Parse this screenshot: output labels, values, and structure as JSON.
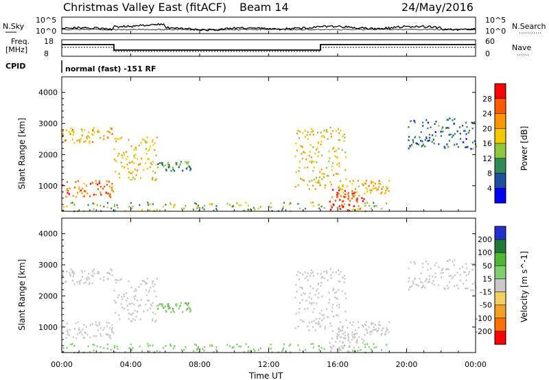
{
  "header": {
    "title": "Christmas Valley East (fitACF)",
    "beam": "Beam 14",
    "date": "24/May/2016"
  },
  "strips": {
    "nsky_label": "N.Sky",
    "nsky_ticks": [
      "10^5",
      "10^0"
    ],
    "nsearch_label": "N.Search",
    "nsearch_ticks": [
      "10^5",
      "10^0"
    ],
    "freq_label_1": "Freq.",
    "freq_label_2": "[MHz]",
    "freq_ticks": [
      "18",
      "8"
    ],
    "nave_label": "Nave",
    "nave_ticks": [
      "60",
      "0"
    ],
    "cpid_label": "CPID",
    "cpid_text": "normal (fast) -151 RF"
  },
  "axes": {
    "ylabel": "Slant Range [km]",
    "xlabel": "Time UT",
    "yticks": [
      "4000",
      "3000",
      "2000",
      "1000"
    ],
    "xticks": [
      "00:00",
      "04:00",
      "08:00",
      "12:00",
      "16:00",
      "20:00",
      "00:00"
    ]
  },
  "power_bar": {
    "label": "Power [dB]",
    "ticks": [
      "28",
      "24",
      "20",
      "16",
      "12",
      "8",
      "4"
    ],
    "colors": [
      "#ff0000",
      "#ff5a00",
      "#ff9600",
      "#f5c800",
      "#8fc83c",
      "#2e8b57",
      "#1c4fa0",
      "#0000ff"
    ]
  },
  "velocity_bar": {
    "label": "Velocity [m s^-1]",
    "ticks": [
      "200",
      "100",
      "50",
      "15",
      "-15",
      "-50",
      "-100",
      "-200"
    ],
    "colors": [
      "#2233cc",
      "#1f7a3a",
      "#4fb833",
      "#7fd06a",
      "#c8c8c8",
      "#f2d060",
      "#f5a020",
      "#ff7000",
      "#ff0000"
    ]
  },
  "chart_data": [
    {
      "type": "heatmap",
      "title": "Power",
      "xlabel": "Time UT",
      "ylabel": "Slant Range [km]",
      "x_range_hours": [
        0,
        24
      ],
      "ylim": [
        180,
        4500
      ],
      "colorbar_label": "Power [dB]",
      "colorbar_range": [
        0,
        32
      ],
      "echo_regions": [
        {
          "name": "near-range band",
          "t_hours": [
            0,
            19
          ],
          "range_km": [
            200,
            500
          ],
          "value_db": 14
        },
        {
          "name": "early low echoes",
          "t_hours": [
            0,
            3
          ],
          "range_km": [
            650,
            1200
          ],
          "value_db": 24
        },
        {
          "name": "early high echoes",
          "t_hours": [
            0,
            3
          ],
          "range_km": [
            2400,
            2900
          ],
          "value_db": 20
        },
        {
          "name": "morning arc",
          "t_hours": [
            3,
            5.5
          ],
          "range_km": [
            1200,
            2600
          ],
          "value_db": 18
        },
        {
          "name": "mid-morning patch",
          "t_hours": [
            5.5,
            7.5
          ],
          "range_km": [
            1500,
            1800
          ],
          "value_db": 10
        },
        {
          "name": "afternoon arc",
          "t_hours": [
            13.5,
            16.5
          ],
          "range_km": [
            900,
            2900
          ],
          "value_db": 18
        },
        {
          "name": "afternoon strong core",
          "t_hours": [
            15.5,
            17.5
          ],
          "range_km": [
            200,
            900
          ],
          "value_db": 28
        },
        {
          "name": "afternoon band",
          "t_hours": [
            16,
            19
          ],
          "range_km": [
            700,
            1200
          ],
          "value_db": 20
        },
        {
          "name": "evening far echoes",
          "t_hours": [
            20,
            24
          ],
          "range_km": [
            2200,
            3200
          ],
          "value_db": 8
        }
      ]
    },
    {
      "type": "heatmap",
      "title": "Velocity",
      "xlabel": "Time UT",
      "ylabel": "Slant Range [km]",
      "x_range_hours": [
        0,
        24
      ],
      "ylim": [
        180,
        4500
      ],
      "colorbar_label": "Velocity [m s^-1]",
      "colorbar_range": [
        -250,
        250
      ],
      "echo_regions": [
        {
          "name": "near-range band",
          "t_hours": [
            0,
            19
          ],
          "range_km": [
            200,
            500
          ],
          "value_ms": 30
        },
        {
          "name": "early low echoes",
          "t_hours": [
            0,
            3
          ],
          "range_km": [
            650,
            1200
          ],
          "value_ms": 0
        },
        {
          "name": "early high echoes",
          "t_hours": [
            0,
            3
          ],
          "range_km": [
            2400,
            2900
          ],
          "value_ms": 0
        },
        {
          "name": "morning arc",
          "t_hours": [
            3,
            5.5
          ],
          "range_km": [
            1200,
            2600
          ],
          "value_ms": 0
        },
        {
          "name": "mid-morning patch",
          "t_hours": [
            5.5,
            7.5
          ],
          "range_km": [
            1500,
            1800
          ],
          "value_ms": 40
        },
        {
          "name": "afternoon arc",
          "t_hours": [
            13.5,
            16.5
          ],
          "range_km": [
            900,
            2900
          ],
          "value_ms": 0
        },
        {
          "name": "afternoon strong core",
          "t_hours": [
            15.5,
            17.5
          ],
          "range_km": [
            200,
            900
          ],
          "value_ms": 0
        },
        {
          "name": "afternoon band",
          "t_hours": [
            16,
            19
          ],
          "range_km": [
            700,
            1200
          ],
          "value_ms": 0
        },
        {
          "name": "evening far echoes",
          "t_hours": [
            20,
            24
          ],
          "range_km": [
            2200,
            3200
          ],
          "value_ms": 0
        }
      ]
    }
  ]
}
